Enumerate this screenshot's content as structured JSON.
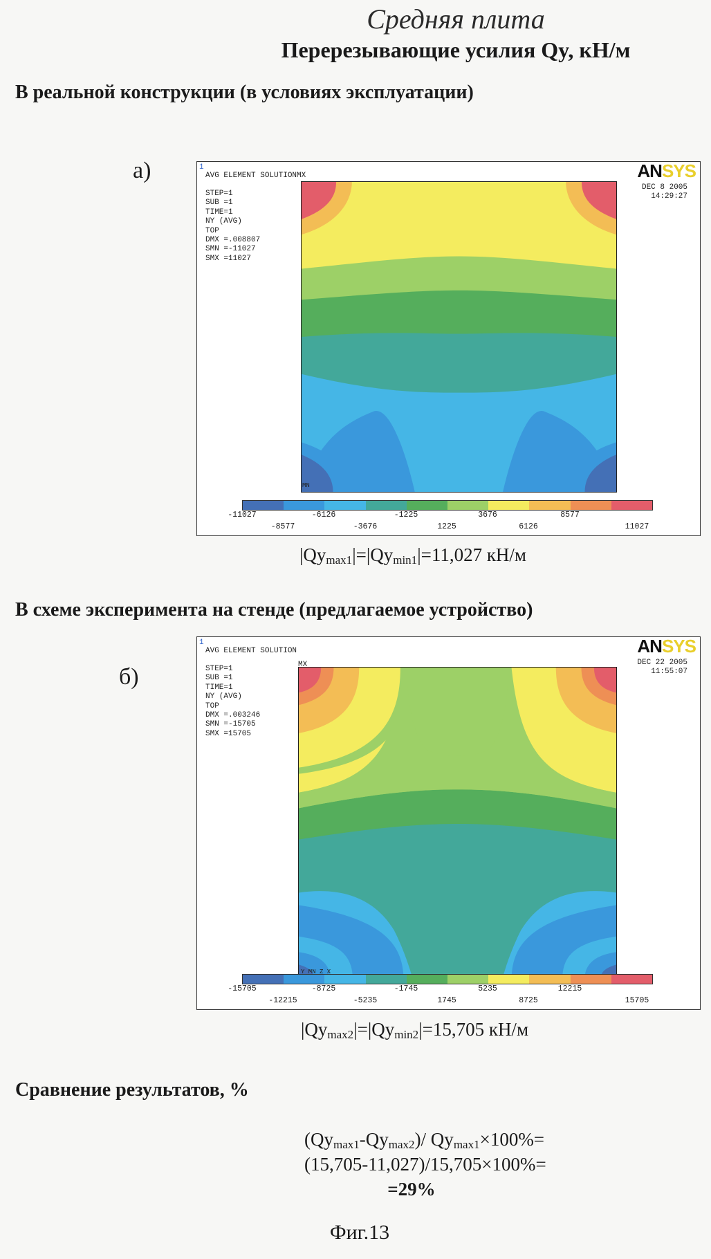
{
  "header": {
    "title_italic": "Средняя плита",
    "title_bold": "Перерезывающие усилия Qy, кН/м"
  },
  "section_a": {
    "heading": "В реальной конструкции (в условиях эксплуатации)",
    "label": "а)",
    "plot": {
      "corner": "1",
      "solution": "AVG ELEMENT SOLUTION",
      "solution_suffix": "MX",
      "info": [
        "STEP=1",
        "SUB =1",
        "TIME=1",
        "NY       (AVG)",
        "TOP",
        "DMX =.008807",
        "SMN =-11027",
        "SMX =11027"
      ],
      "logo_an": "AN",
      "logo_sys": "SYS",
      "date": "DEC  8 2005",
      "time": "14:29:27",
      "mn_marker": "MN",
      "colorbar_top": [
        "-11027",
        "-6126",
        "-1225",
        "3676",
        "8577"
      ],
      "colorbar_bottom": [
        "-8577",
        "-3676",
        "1225",
        "6126",
        "11027"
      ]
    },
    "result": {
      "prefix": "|Qy",
      "sub1": "max1",
      "mid": "|=|Qy",
      "sub2": "min1",
      "suffix": "|=11,027 кН/м"
    }
  },
  "section_b": {
    "heading": "В схеме эксперимента на стенде (предлагаемое устройство)",
    "label": "б)",
    "plot": {
      "corner": "1",
      "solution": "AVG ELEMENT SOLUTION",
      "mx_marker": "MX",
      "info": [
        "STEP=1",
        "SUB =1",
        "TIME=1",
        "NY       (AVG)",
        "TOP",
        "DMX =.003246",
        "SMN =-15705",
        "SMX =15705"
      ],
      "logo_an": "AN",
      "logo_sys": "SYS",
      "date": "DEC 22 2005",
      "time": "11:55:07",
      "mn_marker": "Y MN Z X",
      "colorbar_top": [
        "-15705",
        "-8725",
        "-1745",
        "5235",
        "12215"
      ],
      "colorbar_bottom": [
        "-12215",
        "-5235",
        "1745",
        "8725",
        "15705"
      ]
    },
    "result": {
      "prefix": "|Qy",
      "sub1": "max2",
      "mid": "|=|Qy",
      "sub2": "min2",
      "suffix": "|=15,705 кН/м"
    }
  },
  "comparison": {
    "heading": "Сравнение результатов, %",
    "line1": {
      "p1": "(Qy",
      "s1": "max1",
      "p2": "-Qy",
      "s2": "max2",
      "p3": ")/ Qy",
      "s3": "max1",
      "p4": "×100%="
    },
    "line2": "(15,705-11,027)/15,705×100%=",
    "line3": "=29%"
  },
  "figure_caption": "Фиг.13",
  "colors": {
    "bands": [
      "#4470b6",
      "#3a98dc",
      "#45b6e6",
      "#43a89a",
      "#55ae5c",
      "#9dd067",
      "#f4ec5f",
      "#f3bd55",
      "#ee8f55",
      "#e35d6a"
    ]
  }
}
